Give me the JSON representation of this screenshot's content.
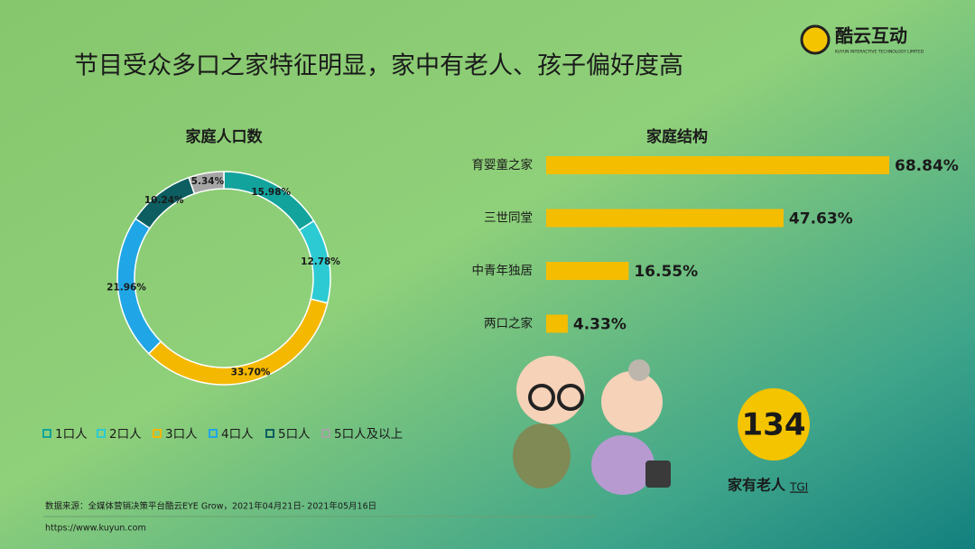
{
  "header": {
    "title": "节目受众多口之家特征明显，家中有老人、孩子偏好度高",
    "logo": "酷云互动",
    "logo_subtitle": "KUYUN INTERACTIVE TECHNOLOGY LIMITED"
  },
  "chart_data": [
    {
      "type": "donut",
      "title": "家庭人口数",
      "categories": [
        "1口人",
        "2口人",
        "3口人",
        "4口人",
        "5口人",
        "5口人及以上"
      ],
      "values": [
        15.98,
        12.78,
        33.7,
        21.96,
        10.24,
        5.34
      ],
      "value_labels": [
        "15.98%",
        "12.78%",
        "33.70%",
        "21.96%",
        "10.24%",
        "5.34%"
      ],
      "colors": [
        "#12a39c",
        "#2ccbd3",
        "#f5b800",
        "#20a6e6",
        "#0c5e60",
        "#a5a5a5"
      ]
    },
    {
      "type": "hbar",
      "title": "家庭结构",
      "categories": [
        "育婴童之家",
        "三世同堂",
        "中青年独居",
        "两口之家"
      ],
      "values": [
        68.84,
        47.63,
        16.55,
        4.33
      ],
      "value_labels": [
        "68.84%",
        "47.63%",
        "16.55%",
        "4.33%"
      ],
      "color": "#f5bd00"
    }
  ],
  "highlight": {
    "value": 134,
    "label": "家有老人",
    "suffix": "TGI"
  },
  "footer": {
    "source": "数据来源：全媒体营销决策平台酷云EYE  Grow，2021年04月21日- 2021年05月16日",
    "url": "https://www.kuyun.com"
  }
}
